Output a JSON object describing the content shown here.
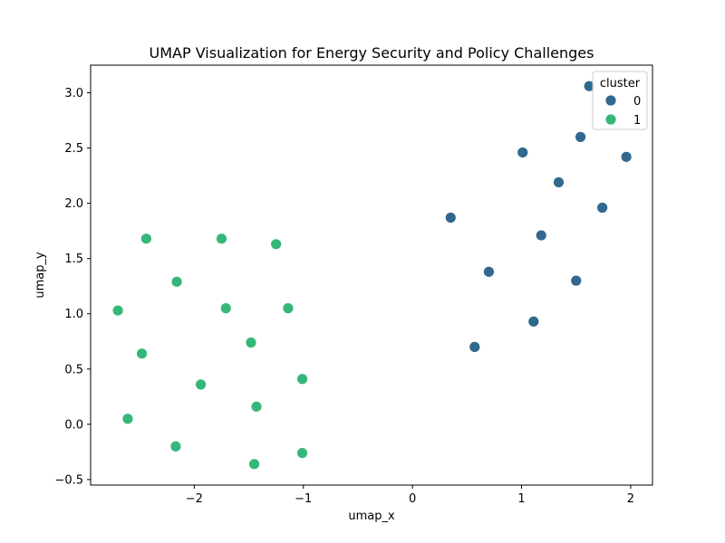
{
  "chart_data": {
    "type": "scatter",
    "title": "UMAP Visualization for Energy Security and Policy Challenges",
    "xlabel": "umap_x",
    "ylabel": "umap_y",
    "xlim": [
      -2.95,
      2.2
    ],
    "ylim": [
      -0.55,
      3.25
    ],
    "x_ticks": [
      -2,
      -1,
      0,
      1,
      2
    ],
    "x_tick_labels": [
      "−2",
      "−1",
      "0",
      "1",
      "2"
    ],
    "y_ticks": [
      -0.5,
      0.0,
      0.5,
      1.0,
      1.5,
      2.0,
      2.5,
      3.0
    ],
    "y_tick_labels": [
      "−0.5",
      "0.0",
      "0.5",
      "1.0",
      "1.5",
      "2.0",
      "2.5",
      "3.0"
    ],
    "grid": false,
    "legend": {
      "title": "cluster",
      "placement": "top-right",
      "entries": [
        "0",
        "1"
      ]
    },
    "series": [
      {
        "name": "0",
        "color": "#30688e",
        "points": [
          {
            "x": 1.62,
            "y": 3.06
          },
          {
            "x": 1.54,
            "y": 2.6
          },
          {
            "x": 1.01,
            "y": 2.46
          },
          {
            "x": 1.96,
            "y": 2.42
          },
          {
            "x": 1.34,
            "y": 2.19
          },
          {
            "x": 1.74,
            "y": 1.96
          },
          {
            "x": 0.35,
            "y": 1.87
          },
          {
            "x": 1.18,
            "y": 1.71
          },
          {
            "x": 0.7,
            "y": 1.38
          },
          {
            "x": 1.5,
            "y": 1.3
          },
          {
            "x": 1.11,
            "y": 0.93
          },
          {
            "x": 0.57,
            "y": 0.7
          }
        ]
      },
      {
        "name": "1",
        "color": "#35b779",
        "points": [
          {
            "x": -2.44,
            "y": 1.68
          },
          {
            "x": -1.75,
            "y": 1.68
          },
          {
            "x": -1.25,
            "y": 1.63
          },
          {
            "x": -2.16,
            "y": 1.29
          },
          {
            "x": -2.7,
            "y": 1.03
          },
          {
            "x": -1.71,
            "y": 1.05
          },
          {
            "x": -1.14,
            "y": 1.05
          },
          {
            "x": -1.48,
            "y": 0.74
          },
          {
            "x": -2.48,
            "y": 0.64
          },
          {
            "x": -1.94,
            "y": 0.36
          },
          {
            "x": -1.01,
            "y": 0.41
          },
          {
            "x": -1.43,
            "y": 0.16
          },
          {
            "x": -2.61,
            "y": 0.05
          },
          {
            "x": -2.17,
            "y": -0.2
          },
          {
            "x": -1.01,
            "y": -0.26
          },
          {
            "x": -1.45,
            "y": -0.36
          }
        ]
      }
    ]
  }
}
